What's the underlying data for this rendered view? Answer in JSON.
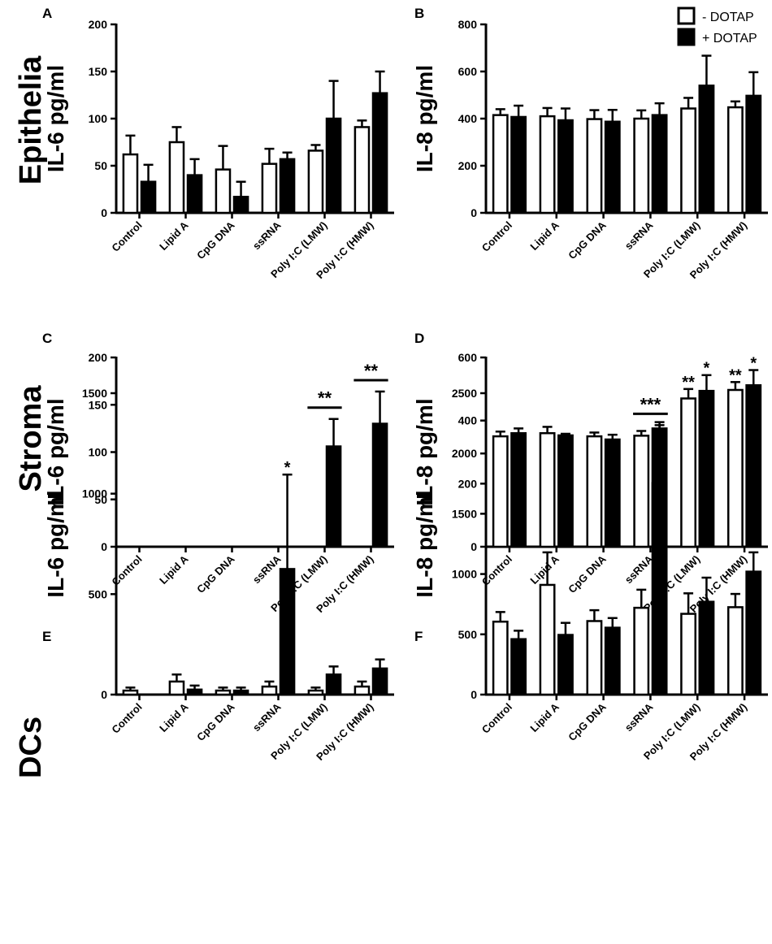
{
  "row_labels": [
    "Epithelia",
    "Stroma",
    "DCs"
  ],
  "legend": {
    "items": [
      {
        "label": "- DOTAP",
        "fill": "#ffffff"
      },
      {
        "label": "+ DOTAP",
        "fill": "#000000"
      }
    ]
  },
  "colors": {
    "minus": "#ffffff",
    "plus": "#000000",
    "stroke": "#000000"
  },
  "chart_data": [
    {
      "panel": "A",
      "type": "bar",
      "ylabel": "IL-6  pg/ml",
      "categories": [
        "Control",
        "Lipid A",
        "CpG DNA",
        "ssRNA",
        "Poly I:C (LMW)",
        "Poly I:C (HMW)"
      ],
      "ylim": [
        0,
        200
      ],
      "yticks": [
        0,
        50,
        100,
        150,
        200
      ],
      "series": [
        {
          "name": "- DOTAP",
          "values": [
            62,
            75,
            46,
            52,
            66,
            91
          ],
          "errors": [
            20,
            16,
            25,
            16,
            6,
            7
          ]
        },
        {
          "name": "+ DOTAP",
          "values": [
            33,
            40,
            17,
            57,
            100,
            127
          ],
          "errors": [
            18,
            17,
            16,
            7,
            40,
            23
          ]
        }
      ],
      "annotations": []
    },
    {
      "panel": "B",
      "type": "bar",
      "ylabel": "IL-8  pg/ml",
      "categories": [
        "Control",
        "Lipid A",
        "CpG DNA",
        "ssRNA",
        "Poly I:C (LMW)",
        "Poly I:C (HMW)"
      ],
      "ylim": [
        0,
        800
      ],
      "yticks": [
        0,
        200,
        400,
        600,
        800
      ],
      "series": [
        {
          "name": "- DOTAP",
          "values": [
            415,
            410,
            398,
            400,
            443,
            448
          ],
          "errors": [
            25,
            35,
            38,
            35,
            45,
            25
          ]
        },
        {
          "name": "+ DOTAP",
          "values": [
            407,
            393,
            387,
            415,
            540,
            497
          ],
          "errors": [
            48,
            50,
            50,
            50,
            127,
            100
          ]
        }
      ],
      "annotations": []
    },
    {
      "panel": "C",
      "type": "bar",
      "ylabel": "IL-6  pg/ml",
      "categories": [
        "Control",
        "Lipid A",
        "CpG DNA",
        "ssRNA",
        "Poly I:C (LMW)",
        "Poly I:C (HMW)"
      ],
      "ylim": [
        0,
        200
      ],
      "yticks": [
        0,
        50,
        100,
        150,
        200
      ],
      "series": [
        {
          "name": "- DOTAP",
          "values": [
            0,
            0,
            0,
            0,
            0,
            0
          ],
          "errors": [
            0,
            0,
            0,
            0,
            0,
            0
          ]
        },
        {
          "name": "+ DOTAP",
          "values": [
            0,
            0,
            0,
            0,
            106,
            130
          ],
          "errors": [
            0,
            0,
            0,
            0,
            29,
            34
          ]
        }
      ],
      "annotations": [
        {
          "text": "**",
          "category": 4,
          "style": "bracket"
        },
        {
          "text": "**",
          "category": 5,
          "style": "bracket"
        }
      ]
    },
    {
      "panel": "D",
      "type": "bar",
      "ylabel": "IL-8  pg/ml",
      "categories": [
        "Control",
        "Lipid A",
        "CpG DNA",
        "ssRNA",
        "Poly I:C (LMW)",
        "Poly I:C (HMW)"
      ],
      "ylim": [
        0,
        600
      ],
      "yticks": [
        0,
        200,
        400,
        600
      ],
      "series": [
        {
          "name": "- DOTAP",
          "values": [
            350,
            360,
            350,
            352,
            470,
            497
          ],
          "errors": [
            15,
            20,
            12,
            15,
            30,
            25
          ]
        },
        {
          "name": "+ DOTAP",
          "values": [
            360,
            353,
            340,
            375,
            494,
            512
          ],
          "errors": [
            15,
            5,
            15,
            20,
            50,
            48
          ]
        }
      ],
      "annotations": [
        {
          "text": "**",
          "category": 4,
          "series": 0
        },
        {
          "text": "*",
          "category": 4,
          "series": 1
        },
        {
          "text": "**",
          "category": 5,
          "series": 0
        },
        {
          "text": "*",
          "category": 5,
          "series": 1
        }
      ]
    },
    {
      "panel": "E",
      "type": "bar",
      "ylabel": "IL-6  pg/ml",
      "categories": [
        "Control",
        "Lipid A",
        "CpG DNA",
        "ssRNA",
        "Poly I:C (LMW)",
        "Poly I:C (HMW)"
      ],
      "ylim": [
        0,
        1500
      ],
      "yticks": [
        0,
        500,
        1000,
        1500
      ],
      "series": [
        {
          "name": "- DOTAP",
          "values": [
            20,
            65,
            20,
            40,
            20,
            40
          ],
          "errors": [
            15,
            35,
            15,
            25,
            15,
            25
          ]
        },
        {
          "name": "+ DOTAP",
          "values": [
            0,
            25,
            20,
            625,
            100,
            130
          ],
          "errors": [
            0,
            20,
            15,
            470,
            40,
            45
          ]
        }
      ],
      "annotations": [
        {
          "text": "*",
          "category": 3,
          "series": 1
        }
      ]
    },
    {
      "panel": "F",
      "type": "bar",
      "ylabel": "IL-8  pg/ml",
      "categories": [
        "Control",
        "Lipid A",
        "CpG DNA",
        "ssRNA",
        "Poly I:C (LMW)",
        "Poly I:C (HMW)"
      ],
      "ylim": [
        0,
        2500
      ],
      "yticks": [
        0,
        500,
        1000,
        1500,
        2000,
        2500
      ],
      "series": [
        {
          "name": "- DOTAP",
          "values": [
            605,
            910,
            610,
            720,
            670,
            725
          ],
          "errors": [
            80,
            270,
            90,
            150,
            170,
            110
          ]
        },
        {
          "name": "+ DOTAP",
          "values": [
            460,
            495,
            555,
            1755,
            770,
            1020
          ],
          "errors": [
            70,
            100,
            80,
            480,
            200,
            160
          ]
        }
      ],
      "annotations": [
        {
          "text": "***",
          "category": 3,
          "style": "bracket"
        }
      ]
    }
  ]
}
